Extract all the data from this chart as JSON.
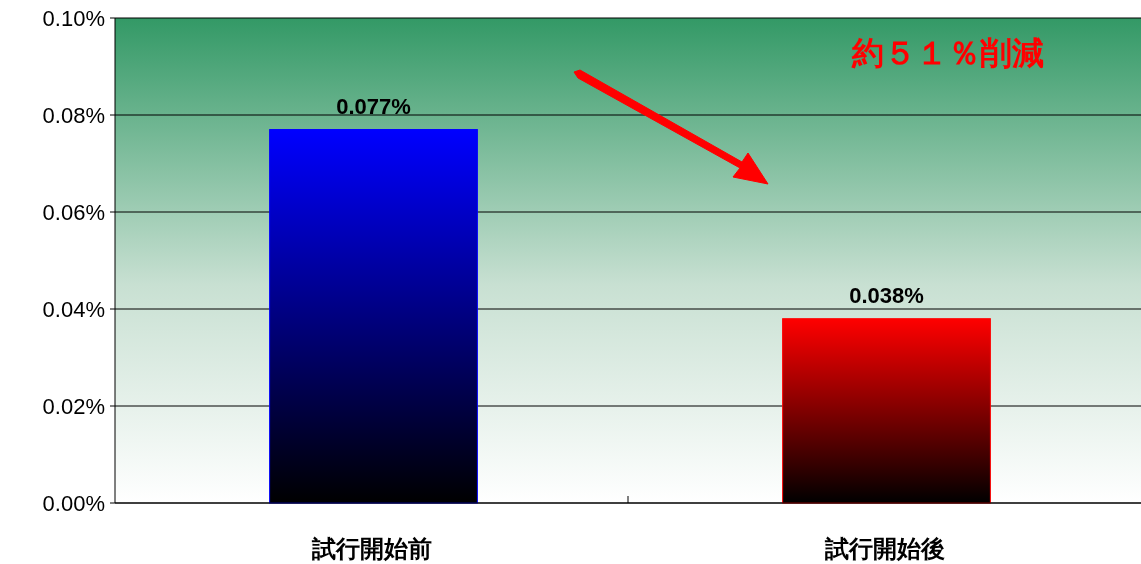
{
  "chart_data": {
    "type": "bar",
    "categories": [
      "試行開始前",
      "試行開始後"
    ],
    "values": [
      0.077,
      0.038
    ],
    "colors": [
      "#0000ff",
      "#ff0000"
    ],
    "value_labels": [
      "0.077%",
      "0.038%"
    ],
    "ylim": [
      0,
      0.1
    ],
    "yticks": [
      {
        "value": 0,
        "label": "0.00%"
      },
      {
        "value": 0.02,
        "label": "0.02%"
      },
      {
        "value": 0.04,
        "label": "0.04%"
      },
      {
        "value": 0.06,
        "label": "0.06%"
      },
      {
        "value": 0.08,
        "label": "0.08%"
      },
      {
        "value": 0.1,
        "label": "0.10%"
      }
    ],
    "grid": "y",
    "annotations": [
      "約５１％削減"
    ]
  }
}
